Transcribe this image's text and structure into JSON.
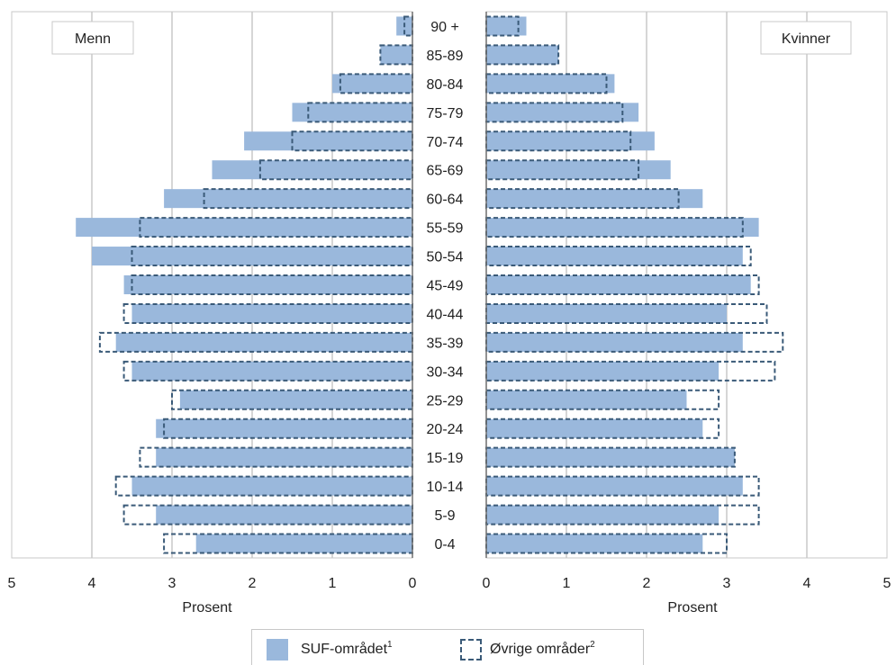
{
  "chart_data": {
    "type": "bar",
    "subtype": "population-pyramid",
    "categories": [
      "0-4",
      "5-9",
      "10-14",
      "15-19",
      "20-24",
      "25-29",
      "30-34",
      "35-39",
      "40-44",
      "45-49",
      "50-54",
      "55-59",
      "60-64",
      "65-69",
      "70-74",
      "75-79",
      "80-84",
      "85-89",
      "90 +"
    ],
    "panels": [
      {
        "title": "Menn",
        "xlabel": "Prosent",
        "xlim": [
          0,
          5
        ],
        "ticks": [
          "5",
          "4",
          "3",
          "2",
          "1",
          "0"
        ],
        "series": [
          {
            "name": "SUF-området",
            "style": "filled",
            "values": [
              2.7,
              3.2,
              3.5,
              3.2,
              3.2,
              2.9,
              3.5,
              3.7,
              3.5,
              3.6,
              4.0,
              4.2,
              3.1,
              2.5,
              2.1,
              1.5,
              1.0,
              0.4,
              0.2
            ]
          },
          {
            "name": "Øvrige områder",
            "style": "dashed",
            "values": [
              3.1,
              3.6,
              3.7,
              3.4,
              3.1,
              3.0,
              3.6,
              3.9,
              3.6,
              3.5,
              3.5,
              3.4,
              2.6,
              1.9,
              1.5,
              1.3,
              0.9,
              0.4,
              0.1
            ]
          }
        ]
      },
      {
        "title": "Kvinner",
        "xlabel": "Prosent",
        "xlim": [
          0,
          5
        ],
        "ticks": [
          "0",
          "1",
          "2",
          "3",
          "4",
          "5"
        ],
        "series": [
          {
            "name": "SUF-området",
            "style": "filled",
            "values": [
              2.7,
              2.9,
              3.2,
              3.1,
              2.7,
              2.5,
              2.9,
              3.2,
              3.0,
              3.3,
              3.2,
              3.4,
              2.7,
              2.3,
              2.1,
              1.9,
              1.6,
              0.9,
              0.5
            ]
          },
          {
            "name": "Øvrige områder",
            "style": "dashed",
            "values": [
              3.0,
              3.4,
              3.4,
              3.1,
              2.9,
              2.9,
              3.6,
              3.7,
              3.5,
              3.4,
              3.3,
              3.2,
              2.4,
              1.9,
              1.8,
              1.7,
              1.5,
              0.9,
              0.4
            ]
          }
        ]
      }
    ],
    "legend": {
      "position": "bottom",
      "items": [
        {
          "label": "SUF-området",
          "sup": "1"
        },
        {
          "label": "Øvrige områder",
          "sup": "2"
        }
      ]
    },
    "grid": true
  },
  "colors": {
    "fill": "#9ab8dc",
    "dash": "#3a5a78",
    "grid": "#c8c8c8"
  }
}
